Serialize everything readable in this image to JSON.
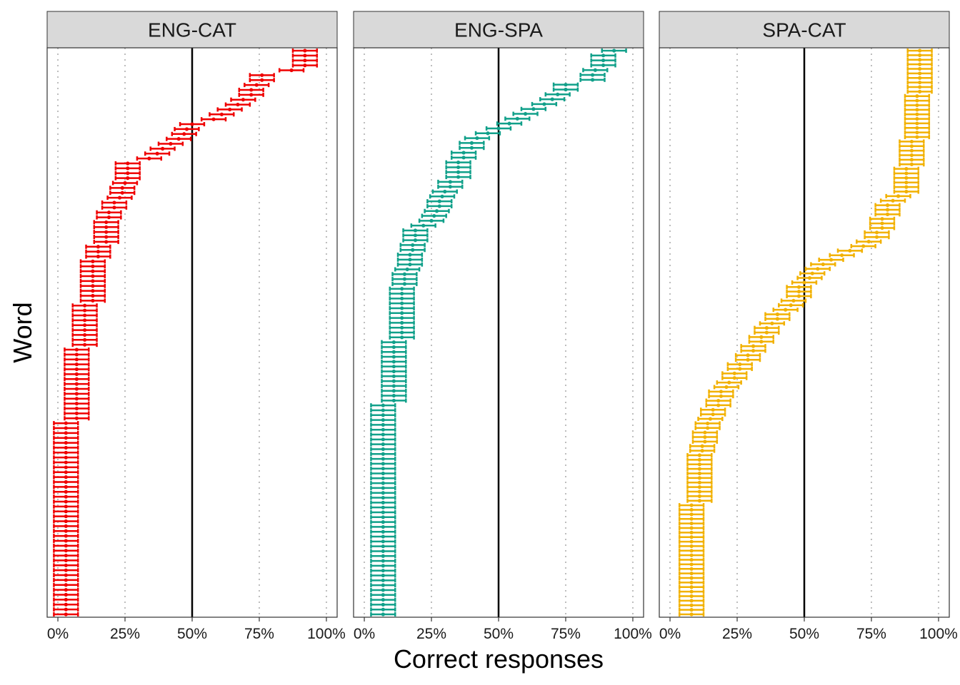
{
  "chart_data": {
    "type": "errorbar-dotplot",
    "xlabel": "Correct responses",
    "ylabel": "Word",
    "xlim": [
      -0.04,
      1.04
    ],
    "reference_line": 0.5,
    "grid": "vertical dotted at 0, 0.25, 0.75, 1",
    "x_ticks": [
      0,
      0.25,
      0.5,
      0.75,
      1
    ],
    "x_tick_labels": [
      "0%",
      "25%",
      "50%",
      "75%",
      "100%"
    ],
    "ci_halfwidth": 0.045,
    "panels": [
      {
        "name": "ENG-CAT",
        "color": "#ef0000",
        "values": [
          0.92,
          0.92,
          0.92,
          0.92,
          0.87,
          0.76,
          0.76,
          0.74,
          0.72,
          0.72,
          0.69,
          0.67,
          0.64,
          0.61,
          0.58,
          0.5,
          0.48,
          0.47,
          0.45,
          0.42,
          0.39,
          0.37,
          0.34,
          0.26,
          0.26,
          0.26,
          0.26,
          0.25,
          0.24,
          0.24,
          0.23,
          0.21,
          0.21,
          0.19,
          0.19,
          0.18,
          0.18,
          0.18,
          0.18,
          0.18,
          0.15,
          0.15,
          0.15,
          0.13,
          0.13,
          0.13,
          0.13,
          0.13,
          0.13,
          0.13,
          0.13,
          0.13,
          0.1,
          0.1,
          0.1,
          0.1,
          0.1,
          0.1,
          0.1,
          0.1,
          0.1,
          0.07,
          0.07,
          0.07,
          0.07,
          0.07,
          0.07,
          0.07,
          0.07,
          0.07,
          0.07,
          0.07,
          0.07,
          0.07,
          0.07,
          0.07,
          0.03,
          0.03,
          0.03,
          0.03,
          0.03,
          0.03,
          0.03,
          0.03,
          0.03,
          0.03,
          0.03,
          0.03,
          0.03,
          0.03,
          0.03,
          0.03,
          0.03,
          0.03,
          0.03,
          0.03,
          0.03,
          0.03,
          0.03,
          0.03,
          0.03,
          0.03,
          0.03,
          0.03,
          0.03,
          0.03,
          0.03,
          0.03,
          0.03,
          0.03,
          0.03,
          0.03,
          0.03,
          0.03,
          0.03,
          0.03
        ]
      },
      {
        "name": "ENG-SPA",
        "color": "#11a08a",
        "values": [
          0.93,
          0.89,
          0.89,
          0.89,
          0.86,
          0.85,
          0.85,
          0.75,
          0.75,
          0.72,
          0.7,
          0.67,
          0.63,
          0.6,
          0.57,
          0.54,
          0.5,
          0.46,
          0.42,
          0.4,
          0.4,
          0.37,
          0.37,
          0.35,
          0.35,
          0.35,
          0.35,
          0.32,
          0.32,
          0.3,
          0.29,
          0.28,
          0.28,
          0.27,
          0.26,
          0.25,
          0.22,
          0.19,
          0.19,
          0.19,
          0.18,
          0.18,
          0.17,
          0.17,
          0.17,
          0.16,
          0.15,
          0.15,
          0.15,
          0.14,
          0.14,
          0.14,
          0.14,
          0.14,
          0.14,
          0.14,
          0.14,
          0.14,
          0.14,
          0.14,
          0.11,
          0.11,
          0.11,
          0.11,
          0.11,
          0.11,
          0.11,
          0.11,
          0.11,
          0.11,
          0.11,
          0.11,
          0.11,
          0.07,
          0.07,
          0.07,
          0.07,
          0.07,
          0.07,
          0.07,
          0.07,
          0.07,
          0.07,
          0.07,
          0.07,
          0.07,
          0.07,
          0.07,
          0.07,
          0.07,
          0.07,
          0.07,
          0.07,
          0.07,
          0.07,
          0.07,
          0.07,
          0.07,
          0.07,
          0.07,
          0.07,
          0.07,
          0.07,
          0.07,
          0.07,
          0.07,
          0.07,
          0.07,
          0.07,
          0.07,
          0.07,
          0.07,
          0.07,
          0.07,
          0.07,
          0.07,
          0.07
        ]
      },
      {
        "name": "SPA-CAT",
        "color": "#f2b100",
        "values": [
          0.93,
          0.93,
          0.93,
          0.93,
          0.93,
          0.93,
          0.93,
          0.93,
          0.93,
          0.93,
          0.92,
          0.92,
          0.92,
          0.92,
          0.92,
          0.92,
          0.92,
          0.92,
          0.92,
          0.92,
          0.9,
          0.9,
          0.9,
          0.9,
          0.9,
          0.9,
          0.88,
          0.88,
          0.88,
          0.88,
          0.88,
          0.88,
          0.85,
          0.83,
          0.81,
          0.81,
          0.81,
          0.79,
          0.79,
          0.79,
          0.77,
          0.77,
          0.74,
          0.72,
          0.67,
          0.64,
          0.6,
          0.57,
          0.55,
          0.53,
          0.52,
          0.5,
          0.48,
          0.48,
          0.48,
          0.46,
          0.45,
          0.43,
          0.4,
          0.4,
          0.38,
          0.36,
          0.36,
          0.34,
          0.34,
          0.31,
          0.31,
          0.29,
          0.29,
          0.26,
          0.26,
          0.24,
          0.24,
          0.22,
          0.21,
          0.19,
          0.19,
          0.18,
          0.18,
          0.16,
          0.16,
          0.15,
          0.14,
          0.14,
          0.13,
          0.13,
          0.13,
          0.12,
          0.12,
          0.11,
          0.11,
          0.11,
          0.11,
          0.11,
          0.11,
          0.11,
          0.11,
          0.11,
          0.11,
          0.11,
          0.08,
          0.08,
          0.08,
          0.08,
          0.08,
          0.08,
          0.08,
          0.08,
          0.08,
          0.08,
          0.08,
          0.08,
          0.08,
          0.08,
          0.08,
          0.08,
          0.08,
          0.08,
          0.08,
          0.08,
          0.08,
          0.08,
          0.08,
          0.08,
          0.08
        ]
      }
    ]
  }
}
